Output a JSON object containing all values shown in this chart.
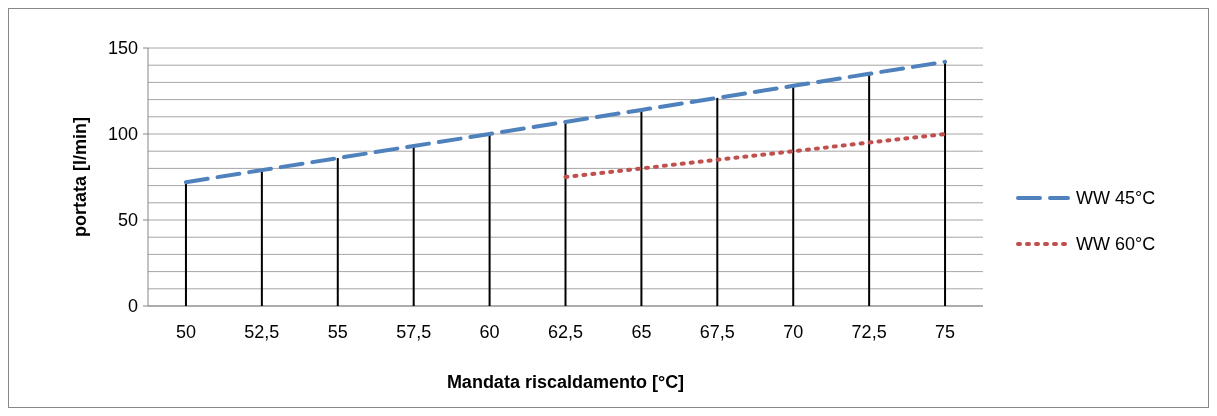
{
  "chart_data": {
    "type": "line",
    "xlabel": "Mandata riscaldamento [°C]",
    "ylabel": "portata [l/min]",
    "categories": [
      "50",
      "52,5",
      "55",
      "57,5",
      "60",
      "62,5",
      "65",
      "67,5",
      "70",
      "72,5",
      "75"
    ],
    "series": [
      {
        "name": "WW 45°C",
        "color": "#4f81bd",
        "line_style": "dashed",
        "values": [
          72,
          79,
          86,
          93,
          100,
          107,
          114,
          121,
          128,
          135,
          142
        ]
      },
      {
        "type": "bar",
        "color": "#000000",
        "values": [
          72,
          79,
          86,
          93,
          100,
          107,
          114,
          121,
          128,
          135,
          142
        ]
      },
      {
        "name": "WW 60°C",
        "color": "#c0504d",
        "line_style": "dotted",
        "values": [
          null,
          null,
          null,
          null,
          null,
          75,
          80,
          85,
          90,
          95,
          100
        ]
      }
    ],
    "ylim": [
      0,
      150
    ],
    "yticks": [
      0,
      {
        "value": 10,
        "label": null
      },
      {
        "value": 20,
        "label": null
      },
      {
        "value": 30,
        "label": null
      },
      {
        "value": 40,
        "label": null
      },
      50,
      {
        "value": 60,
        "label": null
      },
      {
        "value": 70,
        "label": null
      },
      {
        "value": 80,
        "label": null
      },
      {
        "value": 90,
        "label": null
      },
      100,
      {
        "value": 110,
        "label": null
      },
      {
        "value": 120,
        "label": null
      },
      {
        "value": 130,
        "label": null
      },
      {
        "value": 140,
        "label": null
      },
      150
    ],
    "grid": "y",
    "legend": "right",
    "marker": "none"
  }
}
